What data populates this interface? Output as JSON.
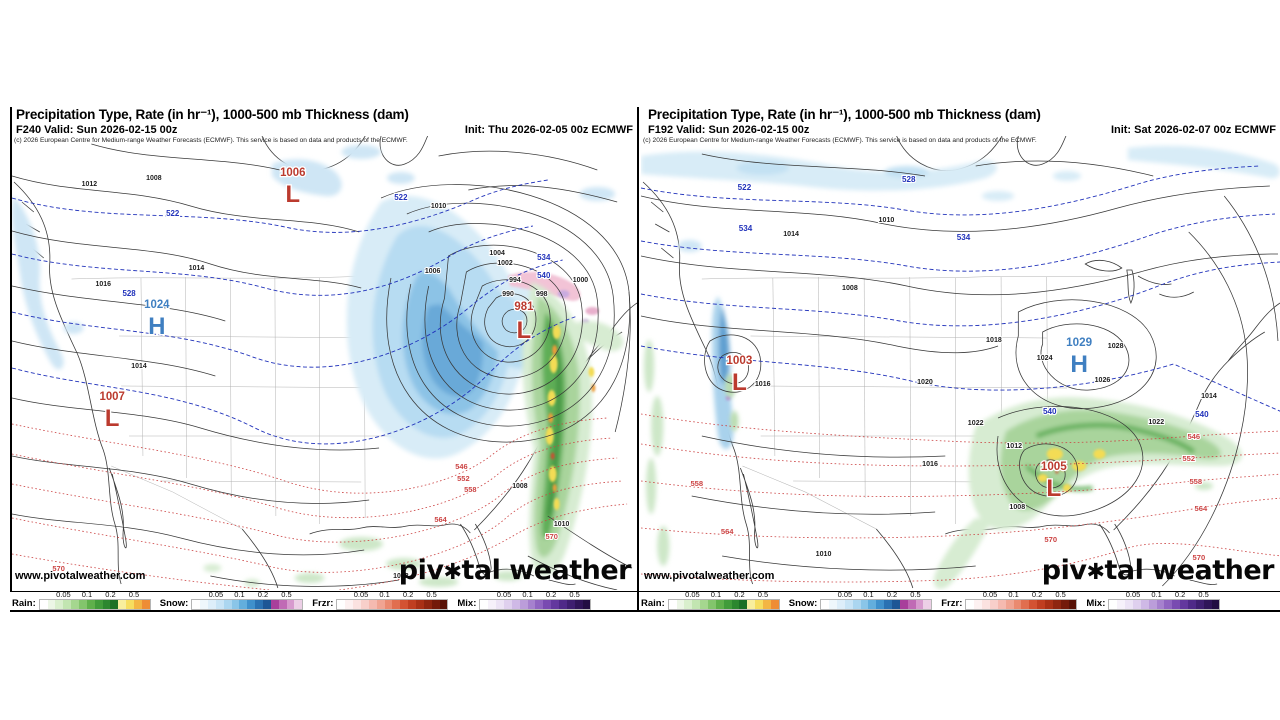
{
  "panels": [
    {
      "title": "Precipitation Type, Rate (in hr⁻¹), 1000-500 mb Thickness (dam)",
      "valid": "F240 Valid: Sun 2026-02-15 00z",
      "init": "Init: Thu 2026-02-05 00z ECMWF",
      "attribution": "(c) 2026 European Centre for Medium-range Weather Forecasts (ECMWF). This service is based on data and products of the ECMWF.",
      "url": "www.pivotalweather.com",
      "markers": [
        {
          "label": "L",
          "value": "1006"
        },
        {
          "label": "H",
          "value": "1024"
        },
        {
          "label": "L",
          "value": "1007"
        },
        {
          "label": "L",
          "value": "981"
        }
      ],
      "isobar_labels": [
        "1012",
        "1008",
        "1014",
        "1016",
        "1010",
        "1004",
        "1002",
        "1006",
        "994",
        "990",
        "998",
        "1000",
        "1008",
        "1010",
        "1012",
        "1014"
      ],
      "thickness_labels_blue": [
        "522",
        "522",
        "528",
        "534",
        "540"
      ],
      "thickness_labels_red": [
        "546",
        "552",
        "558",
        "564",
        "570",
        "570"
      ]
    },
    {
      "title": "Precipitation Type, Rate (in hr⁻¹), 1000-500 mb Thickness (dam)",
      "valid": "F192 Valid: Sun 2026-02-15 00z",
      "init": "Init: Sat 2026-02-07 00z ECMWF",
      "attribution": "(c) 2026 European Centre for Medium-range Weather Forecasts (ECMWF). This service is based on data and products of the ECMWF.",
      "url": "www.pivotalweather.com",
      "markers": [
        {
          "label": "L",
          "value": "1003"
        },
        {
          "label": "H",
          "value": "1029"
        },
        {
          "label": "L",
          "value": "1005"
        }
      ],
      "isobar_labels": [
        "1014",
        "1010",
        "1008",
        "1016",
        "1020",
        "1022",
        "1022",
        "1018",
        "1024",
        "1026",
        "1028",
        "1016",
        "1012",
        "1008",
        "1010",
        "1014"
      ],
      "thickness_labels_blue": [
        "522",
        "528",
        "534",
        "534",
        "540",
        "540"
      ],
      "thickness_labels_red": [
        "558",
        "564",
        "546",
        "552",
        "558",
        "564",
        "570",
        "570"
      ]
    }
  ],
  "brand": {
    "pre": "piv",
    "o": "✱",
    "post": "tal weather"
  },
  "legend": {
    "ticks": [
      "0.05",
      "0.1",
      "0.2",
      "0.5"
    ],
    "types": [
      {
        "label": "Rain:",
        "colors": [
          "#ffffff",
          "#ecf6e6",
          "#d9efcd",
          "#c2e5b1",
          "#a5d78f",
          "#83c56c",
          "#5fb04b",
          "#419c3a",
          "#2c872f",
          "#1c7026",
          "#f8ee9e",
          "#f6dd60",
          "#f3b544",
          "#ee8d35"
        ]
      },
      {
        "label": "Snow:",
        "colors": [
          "#ffffff",
          "#eff7fc",
          "#ddeefa",
          "#c8e4f6",
          "#abd6f0",
          "#8ac5e8",
          "#63aedd",
          "#3f90cc",
          "#2a71b2",
          "#1d5695",
          "#a83f9b",
          "#c06ab5",
          "#d79ace",
          "#ecCfe6"
        ]
      },
      {
        "label": "Frzr:",
        "colors": [
          "#ffffff",
          "#fdf1f1",
          "#fbe2e0",
          "#f8cfca",
          "#f5bab0",
          "#f0a492",
          "#ea8a70",
          "#e16e4f",
          "#d35232",
          "#c03e20",
          "#a93015",
          "#8f250f",
          "#741a0a",
          "#591207"
        ]
      },
      {
        "label": "Mix:",
        "colors": [
          "#ffffff",
          "#f6f1fa",
          "#ece3f5",
          "#dfd0ee",
          "#cfb9e6",
          "#bb9dda",
          "#a681ce",
          "#9065c1",
          "#794bb1",
          "#63389e",
          "#4f2a88",
          "#3e1f70",
          "#2f1558",
          "#220e42"
        ]
      }
    ]
  },
  "colors": {
    "low_marker": "#bb3a2e",
    "high_marker": "#3f7fc1",
    "thickness_cold": "#2233bb",
    "thickness_warm": "#cc4444"
  }
}
